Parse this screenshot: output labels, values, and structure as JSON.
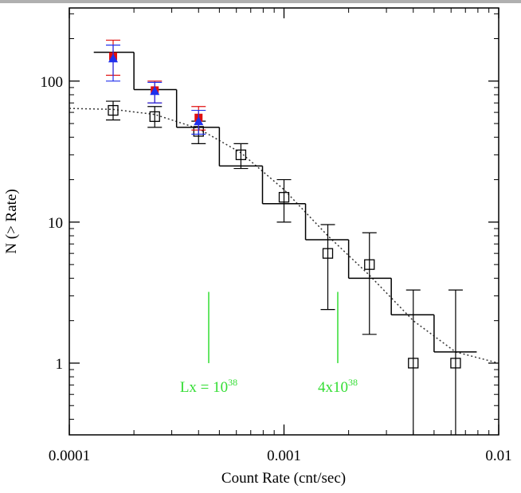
{
  "chart_data": {
    "type": "line",
    "xlabel": "Count Rate (cnt/sec)",
    "ylabel": "N (> Rate)",
    "log_x": true,
    "log_y": true,
    "minor_ticks": true,
    "xlim": [
      0.0001,
      0.01
    ],
    "xticks": [
      0.0001,
      0.001,
      0.01
    ],
    "ylim": [
      0.31,
      330
    ],
    "yticks": [
      1,
      10,
      100
    ],
    "points": [
      {
        "marker": "square-open",
        "color": "#000000",
        "x": [
          0.00016,
          0.00025,
          0.0004,
          0.00063,
          0.001,
          0.0016,
          0.0025,
          0.004,
          0.0063
        ],
        "values": [
          62,
          56,
          44,
          30,
          15,
          6,
          5,
          1,
          1
        ],
        "lower": [
          53,
          47,
          36,
          24,
          10,
          2.4,
          1.6,
          0.1,
          0.1
        ],
        "upper": [
          72,
          66,
          52,
          36,
          20,
          9.6,
          8.4,
          3.3,
          3.3
        ]
      },
      {
        "marker": "square-filled",
        "color": "#e01010",
        "x": [
          0.00016,
          0.00025,
          0.0004
        ],
        "values": [
          150,
          86,
          55
        ],
        "lower": [
          110,
          70,
          45
        ],
        "upper": [
          195,
          100,
          66
        ]
      },
      {
        "marker": "triangle-filled",
        "color": "#2030ee",
        "x": [
          0.00016,
          0.00025,
          0.0004
        ],
        "values": [
          145,
          85,
          52
        ],
        "lower": [
          100,
          70,
          42
        ],
        "upper": [
          180,
          98,
          62
        ]
      }
    ],
    "steps": [
      {
        "color": "#000000",
        "bins": [
          0.00013,
          0.0002,
          0.000316,
          0.0005,
          0.000794,
          0.00126,
          0.002,
          0.00316,
          0.005,
          0.0079
        ],
        "values": [
          160,
          87,
          47,
          25,
          13.5,
          7.5,
          4,
          2.2,
          1.2
        ]
      }
    ],
    "model": {
      "color": "#333333",
      "x": [
        0.0001,
        0.00016,
        0.00025,
        0.0004,
        0.00063,
        0.001,
        0.0016,
        0.0025,
        0.004,
        0.0063,
        0.01
      ],
      "values": [
        64,
        63,
        58,
        46,
        31,
        17,
        8,
        4.2,
        2,
        1.2,
        1.0
      ]
    },
    "markers": [
      {
        "x": 0.000446,
        "y_range": [
          1,
          3.2
        ],
        "label": "Lx = 10",
        "label_sup": "38"
      },
      {
        "x": 0.00178,
        "y_range": [
          1,
          3.2
        ],
        "label": "4x10",
        "label_sup": "38"
      }
    ]
  }
}
